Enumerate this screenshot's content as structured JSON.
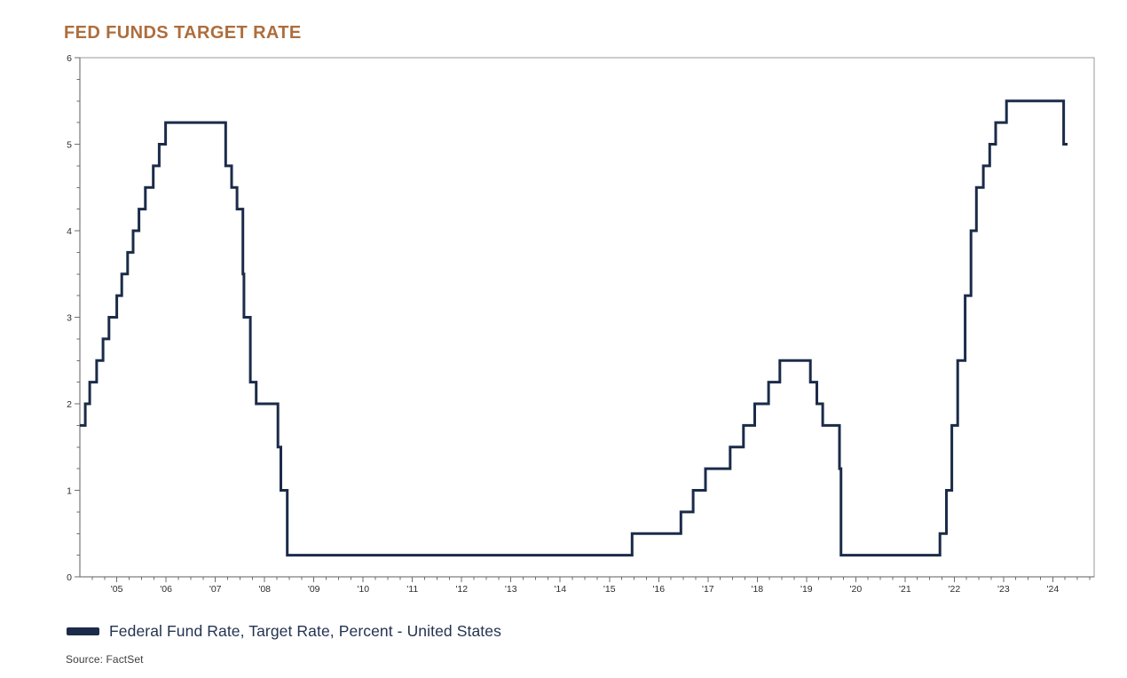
{
  "header": {
    "title": "FED FUNDS TARGET RATE",
    "title_color": "#AE6D3C"
  },
  "legend": {
    "label": "Federal Fund Rate, Target Rate, Percent - United States",
    "swatch_color": "#1B2B49"
  },
  "footer": {
    "source": "Source: FactSet"
  },
  "chart_data": {
    "type": "line",
    "step": "after",
    "title": "FED FUNDS TARGET RATE",
    "xlabel": "",
    "ylabel": "",
    "xlim": [
      2004.75,
      2025.34
    ],
    "ylim": [
      0,
      6
    ],
    "grid": false,
    "legend_position": "bottom-left",
    "colors": {
      "line": "#1B2B49",
      "frame": "#9A9A9A",
      "axis": "#5E5E5E",
      "tick": "#6E6E6E",
      "tick_label": "#2B2B2B"
    },
    "y_tick_values": [
      0,
      1,
      2,
      3,
      4,
      5,
      6
    ],
    "y_tick_labels": [
      "0",
      "1",
      "2",
      "3",
      "4",
      "5",
      "6"
    ],
    "y_minor_step": 0.25,
    "x_minor_step": 0.25,
    "x_tick_labels": [
      {
        "t": 2005.5,
        "label": "'05"
      },
      {
        "t": 2006.5,
        "label": "'06"
      },
      {
        "t": 2007.5,
        "label": "'07"
      },
      {
        "t": 2008.5,
        "label": "'08"
      },
      {
        "t": 2009.5,
        "label": "'09"
      },
      {
        "t": 2010.5,
        "label": "'10"
      },
      {
        "t": 2011.5,
        "label": "'11"
      },
      {
        "t": 2012.5,
        "label": "'12"
      },
      {
        "t": 2013.5,
        "label": "'13"
      },
      {
        "t": 2014.5,
        "label": "'14"
      },
      {
        "t": 2015.5,
        "label": "'15"
      },
      {
        "t": 2016.5,
        "label": "'16"
      },
      {
        "t": 2017.5,
        "label": "'17"
      },
      {
        "t": 2018.5,
        "label": "'18"
      },
      {
        "t": 2019.5,
        "label": "'19"
      },
      {
        "t": 2020.5,
        "label": "'20"
      },
      {
        "t": 2021.5,
        "label": "'21"
      },
      {
        "t": 2022.5,
        "label": "'22"
      },
      {
        "t": 2023.5,
        "label": "'23"
      },
      {
        "t": 2024.5,
        "label": "'24"
      }
    ],
    "series": [
      {
        "name": "Federal Fund Rate, Target Rate, Percent - United States",
        "units": "percent",
        "points": [
          [
            2004.75,
            1.75
          ],
          [
            2004.86,
            2.0
          ],
          [
            2004.95,
            2.25
          ],
          [
            2005.09,
            2.5
          ],
          [
            2005.22,
            2.75
          ],
          [
            2005.34,
            3.0
          ],
          [
            2005.5,
            3.25
          ],
          [
            2005.6,
            3.5
          ],
          [
            2005.72,
            3.75
          ],
          [
            2005.83,
            4.0
          ],
          [
            2005.95,
            4.25
          ],
          [
            2006.08,
            4.5
          ],
          [
            2006.24,
            4.75
          ],
          [
            2006.36,
            5.0
          ],
          [
            2006.49,
            5.25
          ],
          [
            2007.71,
            4.75
          ],
          [
            2007.83,
            4.5
          ],
          [
            2007.94,
            4.25
          ],
          [
            2008.06,
            3.5
          ],
          [
            2008.08,
            3.0
          ],
          [
            2008.21,
            2.25
          ],
          [
            2008.33,
            2.0
          ],
          [
            2008.77,
            1.5
          ],
          [
            2008.83,
            1.0
          ],
          [
            2008.96,
            0.25
          ],
          [
            2015.96,
            0.5
          ],
          [
            2016.95,
            0.75
          ],
          [
            2017.2,
            1.0
          ],
          [
            2017.45,
            1.25
          ],
          [
            2017.95,
            1.5
          ],
          [
            2018.22,
            1.75
          ],
          [
            2018.45,
            2.0
          ],
          [
            2018.73,
            2.25
          ],
          [
            2018.96,
            2.5
          ],
          [
            2019.58,
            2.25
          ],
          [
            2019.71,
            2.0
          ],
          [
            2019.83,
            1.75
          ],
          [
            2020.17,
            1.25
          ],
          [
            2020.2,
            0.25
          ],
          [
            2022.21,
            0.5
          ],
          [
            2022.34,
            1.0
          ],
          [
            2022.45,
            1.75
          ],
          [
            2022.57,
            2.5
          ],
          [
            2022.72,
            3.25
          ],
          [
            2022.84,
            4.0
          ],
          [
            2022.95,
            4.5
          ],
          [
            2023.09,
            4.75
          ],
          [
            2023.22,
            5.0
          ],
          [
            2023.34,
            5.25
          ],
          [
            2023.56,
            5.5
          ],
          [
            2024.72,
            5.0
          ]
        ],
        "end_x": 2024.8
      }
    ]
  }
}
